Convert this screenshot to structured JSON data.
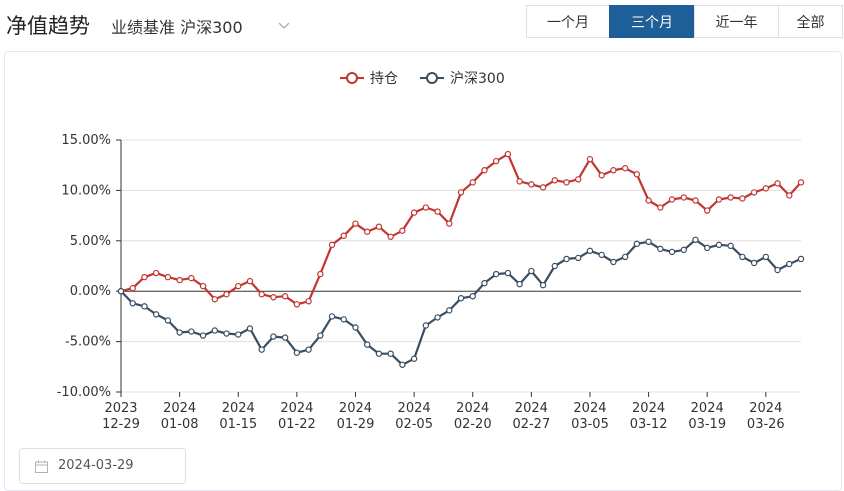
{
  "header": {
    "title": "净值趋势",
    "benchmark_label": "业绩基准",
    "benchmark_value": "沪深300"
  },
  "tabs": [
    {
      "label": "一个月",
      "active": false
    },
    {
      "label": "三个月",
      "active": true
    },
    {
      "label": "近一年",
      "active": false
    },
    {
      "label": "全部",
      "active": false
    }
  ],
  "date_picker": {
    "value": "2024-03-29"
  },
  "colors": {
    "holding": "#c23531",
    "benchmark": "#3a4e63",
    "active_tab": "#1f5f99"
  },
  "chart_data": {
    "type": "line",
    "legend": [
      "持仓",
      "沪深300"
    ],
    "legend_position": "top-center",
    "y_ticks": [
      "15.00%",
      "10.00%",
      "5.00%",
      "0.00%",
      "-5.00%",
      "-10.00%"
    ],
    "ylim": [
      -10,
      15
    ],
    "x_tick_labels": [
      {
        "top": "2023",
        "bottom": "12-29",
        "index": 0
      },
      {
        "top": "2024",
        "bottom": "01-08",
        "index": 5
      },
      {
        "top": "2024",
        "bottom": "01-15",
        "index": 10
      },
      {
        "top": "2024",
        "bottom": "01-22",
        "index": 15
      },
      {
        "top": "2024",
        "bottom": "01-29",
        "index": 20
      },
      {
        "top": "2024",
        "bottom": "02-05",
        "index": 25
      },
      {
        "top": "2024",
        "bottom": "02-20",
        "index": 30
      },
      {
        "top": "2024",
        "bottom": "02-27",
        "index": 35
      },
      {
        "top": "2024",
        "bottom": "03-05",
        "index": 40
      },
      {
        "top": "2024",
        "bottom": "03-12",
        "index": 45
      },
      {
        "top": "2024",
        "bottom": "03-19",
        "index": 50
      },
      {
        "top": "2024",
        "bottom": "03-26",
        "index": 55
      }
    ],
    "grid": true,
    "series": [
      {
        "name": "持仓",
        "values": [
          0,
          0.3,
          1.4,
          1.8,
          1.4,
          1.1,
          1.3,
          0.5,
          -0.8,
          -0.3,
          0.5,
          1.0,
          -0.3,
          -0.6,
          -0.5,
          -1.3,
          -1.0,
          1.7,
          4.6,
          5.5,
          6.7,
          5.9,
          6.4,
          5.4,
          6.0,
          7.8,
          8.3,
          7.9,
          6.7,
          9.8,
          10.8,
          12.0,
          12.9,
          13.6,
          10.9,
          10.6,
          10.3,
          11.0,
          10.8,
          11.1,
          13.1,
          11.5,
          12.0,
          12.2,
          11.6,
          9.0,
          8.3,
          9.1,
          9.3,
          9.0,
          8.0,
          9.1,
          9.3,
          9.2,
          9.8,
          10.2,
          10.7,
          9.5,
          10.8
        ]
      },
      {
        "name": "沪深300",
        "values": [
          0,
          -1.2,
          -1.5,
          -2.3,
          -2.9,
          -4.1,
          -4.0,
          -4.4,
          -3.9,
          -4.2,
          -4.3,
          -3.7,
          -5.8,
          -4.5,
          -4.6,
          -6.1,
          -5.8,
          -4.4,
          -2.5,
          -2.8,
          -3.6,
          -5.3,
          -6.2,
          -6.2,
          -7.3,
          -6.7,
          -3.4,
          -2.6,
          -1.9,
          -0.7,
          -0.5,
          0.8,
          1.7,
          1.8,
          0.7,
          2.0,
          0.6,
          2.5,
          3.2,
          3.3,
          4.0,
          3.6,
          2.9,
          3.4,
          4.7,
          4.9,
          4.2,
          3.9,
          4.1,
          5.1,
          4.3,
          4.6,
          4.5,
          3.4,
          2.8,
          3.4,
          2.1,
          2.7,
          3.2
        ]
      }
    ]
  }
}
